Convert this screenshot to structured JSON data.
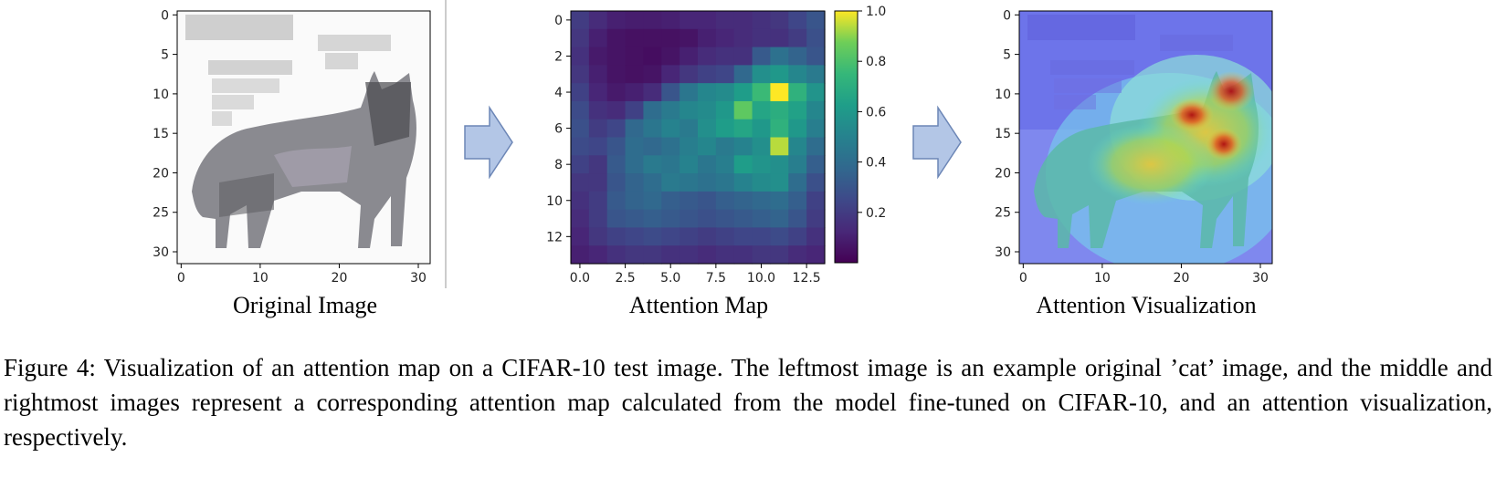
{
  "panels": {
    "original": {
      "label": "Original Image",
      "y_ticks": [
        "0",
        "5",
        "10",
        "15",
        "20",
        "25",
        "30"
      ],
      "x_ticks": [
        "0",
        "10",
        "20",
        "30"
      ]
    },
    "attention_map": {
      "label": "Attention Map",
      "y_ticks": [
        "0",
        "2",
        "4",
        "6",
        "8",
        "10",
        "12"
      ],
      "x_ticks": [
        "0.0",
        "2.5",
        "5.0",
        "7.5",
        "10.0",
        "12.5"
      ],
      "colorbar_ticks": [
        "0.2",
        "0.4",
        "0.6",
        "0.8",
        "1.0"
      ]
    },
    "visualization": {
      "label": "Attention Visualization",
      "y_ticks": [
        "0",
        "5",
        "10",
        "15",
        "20",
        "25",
        "30"
      ],
      "x_ticks": [
        "0",
        "10",
        "20",
        "30"
      ]
    }
  },
  "arrows": [
    "arrow-icon",
    "arrow-icon"
  ],
  "caption": "Figure 4: Visualization of an attention map on a CIFAR-10 test image. The leftmost image is an example original ’cat’ image, and the middle and rightmost images represent a corresponding attention map calculated from the model fine-tuned on CIFAR-10, and an attention visualization, respectively.",
  "chart_data": {
    "type": "heatmap",
    "colormap": "viridis",
    "colorbar_range": [
      0.0,
      1.0
    ],
    "grid_size": [
      14,
      14
    ],
    "values": [
      [
        0.2,
        0.14,
        0.1,
        0.09,
        0.09,
        0.1,
        0.12,
        0.12,
        0.14,
        0.14,
        0.16,
        0.18,
        0.24,
        0.3
      ],
      [
        0.18,
        0.1,
        0.06,
        0.05,
        0.05,
        0.05,
        0.06,
        0.1,
        0.12,
        0.14,
        0.16,
        0.16,
        0.2,
        0.28
      ],
      [
        0.16,
        0.08,
        0.06,
        0.05,
        0.04,
        0.06,
        0.1,
        0.14,
        0.16,
        0.16,
        0.32,
        0.42,
        0.36,
        0.3
      ],
      [
        0.18,
        0.1,
        0.06,
        0.05,
        0.06,
        0.12,
        0.18,
        0.22,
        0.24,
        0.38,
        0.56,
        0.6,
        0.52,
        0.46
      ],
      [
        0.22,
        0.12,
        0.08,
        0.1,
        0.14,
        0.3,
        0.44,
        0.52,
        0.54,
        0.62,
        0.76,
        1.0,
        0.72,
        0.58
      ],
      [
        0.26,
        0.16,
        0.14,
        0.22,
        0.4,
        0.46,
        0.52,
        0.54,
        0.6,
        0.84,
        0.66,
        0.7,
        0.64,
        0.52
      ],
      [
        0.28,
        0.2,
        0.24,
        0.38,
        0.44,
        0.5,
        0.46,
        0.56,
        0.62,
        0.66,
        0.6,
        0.72,
        0.6,
        0.48
      ],
      [
        0.26,
        0.24,
        0.3,
        0.4,
        0.38,
        0.42,
        0.48,
        0.52,
        0.46,
        0.5,
        0.56,
        0.94,
        0.52,
        0.4
      ],
      [
        0.22,
        0.18,
        0.32,
        0.4,
        0.46,
        0.44,
        0.5,
        0.44,
        0.48,
        0.62,
        0.58,
        0.56,
        0.48,
        0.34
      ],
      [
        0.18,
        0.18,
        0.3,
        0.36,
        0.4,
        0.46,
        0.44,
        0.42,
        0.44,
        0.5,
        0.54,
        0.56,
        0.4,
        0.28
      ],
      [
        0.16,
        0.2,
        0.32,
        0.36,
        0.38,
        0.34,
        0.32,
        0.3,
        0.34,
        0.36,
        0.38,
        0.4,
        0.34,
        0.22
      ],
      [
        0.14,
        0.2,
        0.3,
        0.32,
        0.34,
        0.32,
        0.3,
        0.28,
        0.3,
        0.32,
        0.34,
        0.36,
        0.3,
        0.2
      ],
      [
        0.12,
        0.18,
        0.22,
        0.24,
        0.26,
        0.24,
        0.22,
        0.2,
        0.22,
        0.24,
        0.24,
        0.26,
        0.22,
        0.16
      ],
      [
        0.1,
        0.12,
        0.16,
        0.18,
        0.18,
        0.16,
        0.16,
        0.14,
        0.16,
        0.16,
        0.18,
        0.18,
        0.14,
        0.12
      ]
    ]
  }
}
